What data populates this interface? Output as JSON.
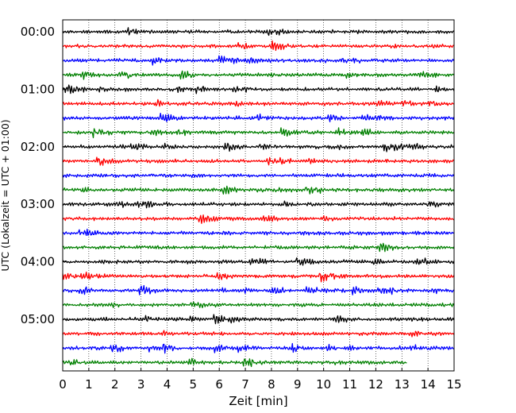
{
  "chart_data": {
    "type": "line",
    "title": "",
    "xlabel": "Zeit  [min]",
    "ylabel": "UTC (Lokalzeit = UTC + 01:00)",
    "xlim": [
      0,
      15
    ],
    "x_ticks": [
      "0",
      "1",
      "2",
      "3",
      "4",
      "5",
      "6",
      "7",
      "8",
      "9",
      "10",
      "11",
      "12",
      "13",
      "14",
      "15"
    ],
    "y_tick_labels": [
      "00:00",
      "01:00",
      "02:00",
      "03:00",
      "04:00",
      "05:00"
    ],
    "trace_interval_minutes": 15,
    "trace_count": 24,
    "last_trace_end_minute": 13.2,
    "grid": "vertical dotted lines at each minute",
    "trace_colors": [
      "#000000",
      "#ff0000",
      "#0000ff",
      "#008000"
    ],
    "series": [
      {
        "start_utc": "00:00",
        "color": "#000000"
      },
      {
        "start_utc": "00:15",
        "color": "#ff0000"
      },
      {
        "start_utc": "00:30",
        "color": "#0000ff"
      },
      {
        "start_utc": "00:45",
        "color": "#008000"
      },
      {
        "start_utc": "01:00",
        "color": "#000000"
      },
      {
        "start_utc": "01:15",
        "color": "#ff0000"
      },
      {
        "start_utc": "01:30",
        "color": "#0000ff"
      },
      {
        "start_utc": "01:45",
        "color": "#008000"
      },
      {
        "start_utc": "02:00",
        "color": "#000000"
      },
      {
        "start_utc": "02:15",
        "color": "#ff0000"
      },
      {
        "start_utc": "02:30",
        "color": "#0000ff"
      },
      {
        "start_utc": "02:45",
        "color": "#008000"
      },
      {
        "start_utc": "03:00",
        "color": "#000000"
      },
      {
        "start_utc": "03:15",
        "color": "#ff0000"
      },
      {
        "start_utc": "03:30",
        "color": "#0000ff"
      },
      {
        "start_utc": "03:45",
        "color": "#008000"
      },
      {
        "start_utc": "04:00",
        "color": "#000000"
      },
      {
        "start_utc": "04:15",
        "color": "#ff0000"
      },
      {
        "start_utc": "04:30",
        "color": "#0000ff"
      },
      {
        "start_utc": "04:45",
        "color": "#008000"
      },
      {
        "start_utc": "05:00",
        "color": "#000000"
      },
      {
        "start_utc": "05:15",
        "color": "#ff0000"
      },
      {
        "start_utc": "05:30",
        "color": "#0000ff"
      },
      {
        "start_utc": "05:45",
        "color": "#008000"
      }
    ]
  }
}
